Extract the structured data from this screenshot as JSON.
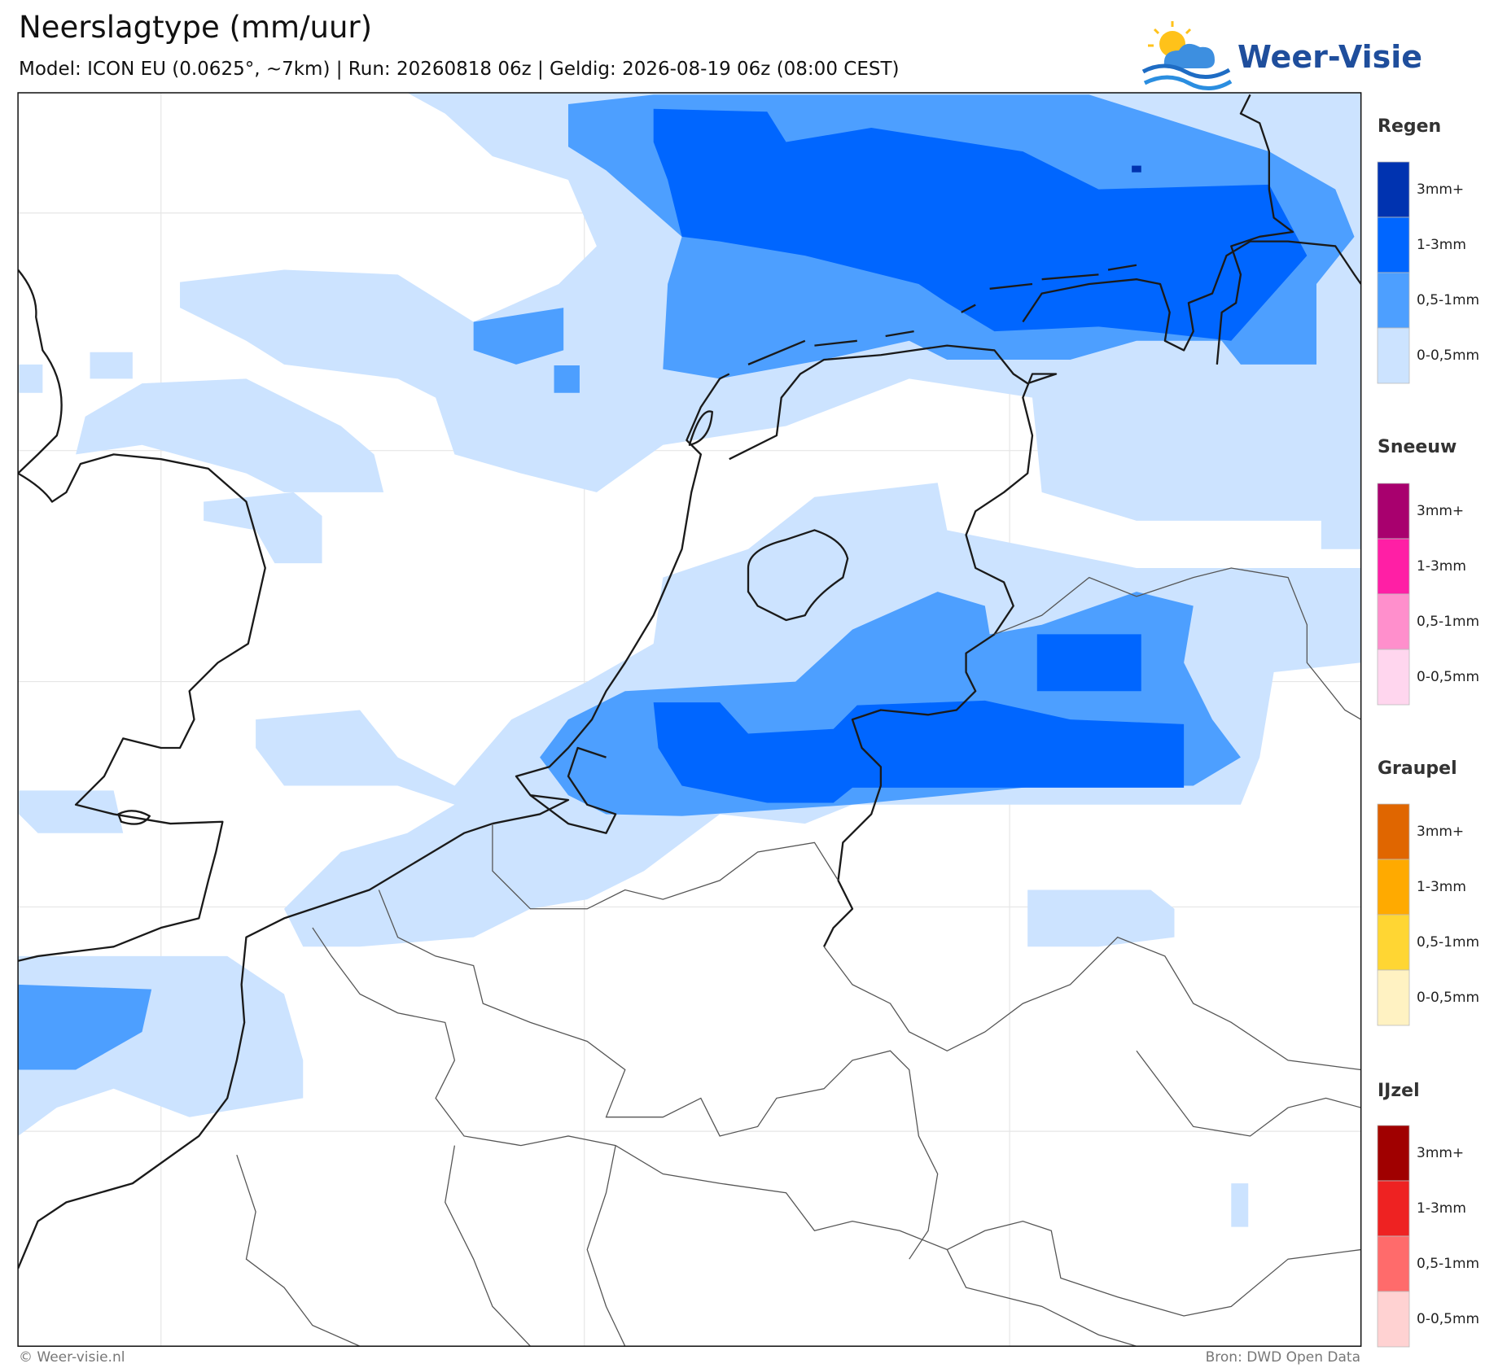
{
  "header": {
    "title": "Neerslagtype (mm/uur)",
    "subtitle": "Model: ICON EU (0.0625°, ~7km)  |  Run: 20260818 06z  |  Geldig: 2026-08-19 06z (08:00 CEST)",
    "logo": "Weer-Visie"
  },
  "legend": [
    {
      "title": "Regen",
      "items": [
        {
          "label": "3mm+",
          "color": "#0033b0"
        },
        {
          "label": "1-3mm",
          "color": "#0066ff"
        },
        {
          "label": "0,5-1mm",
          "color": "#4d9fff"
        },
        {
          "label": "0-0,5mm",
          "color": "#cce3ff"
        }
      ]
    },
    {
      "title": "Sneeuw",
      "items": [
        {
          "label": "3mm+",
          "color": "#a8006e"
        },
        {
          "label": "1-3mm",
          "color": "#ff1fa5"
        },
        {
          "label": "0,5-1mm",
          "color": "#ff8fcc"
        },
        {
          "label": "0-0,5mm",
          "color": "#ffd6ee"
        }
      ]
    },
    {
      "title": "Graupel",
      "items": [
        {
          "label": "3mm+",
          "color": "#e06600"
        },
        {
          "label": "1-3mm",
          "color": "#ffaa00"
        },
        {
          "label": "0,5-1mm",
          "color": "#ffd633"
        },
        {
          "label": "0-0,5mm",
          "color": "#fff2c2"
        }
      ]
    },
    {
      "title": "IJzel",
      "items": [
        {
          "label": "3mm+",
          "color": "#a00000"
        },
        {
          "label": "1-3mm",
          "color": "#ee2222"
        },
        {
          "label": "0,5-1mm",
          "color": "#ff6b6b"
        },
        {
          "label": "0-0,5mm",
          "color": "#ffd2d2"
        }
      ]
    }
  ],
  "footer": {
    "credit": "© Weer-visie.nl",
    "source": "Bron: DWD Open Data"
  }
}
